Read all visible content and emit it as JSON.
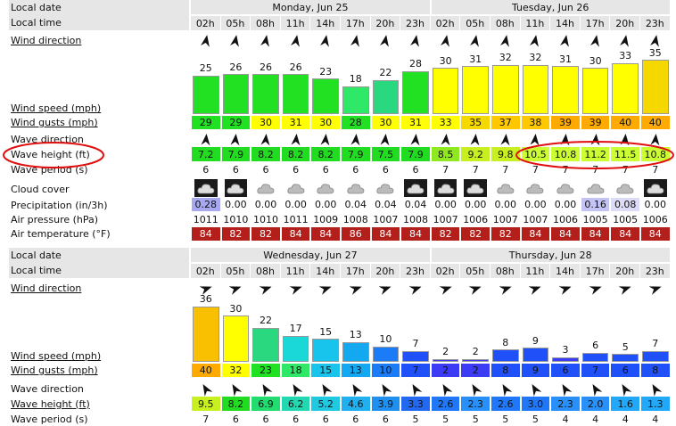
{
  "blocks": [
    {
      "local_date": "Local date",
      "days": [
        "Monday, Jun 25",
        "Tuesday, Jun 26"
      ],
      "local_time": "Local time",
      "hours": [
        "02h",
        "05h",
        "08h",
        "11h",
        "14h",
        "17h",
        "20h",
        "23h",
        "02h",
        "05h",
        "08h",
        "11h",
        "14h",
        "17h",
        "20h",
        "23h"
      ],
      "wind_direction": "Wind direction",
      "wind_speed": {
        "label": "Wind speed (mph)",
        "values": [
          25,
          26,
          26,
          26,
          23,
          18,
          22,
          28,
          30,
          31,
          32,
          32,
          31,
          30,
          33,
          35
        ]
      },
      "wind_gusts": {
        "label": "Wind gusts (mph)",
        "values": [
          29,
          29,
          30,
          31,
          30,
          28,
          30,
          31,
          33,
          35,
          37,
          38,
          39,
          39,
          40,
          40
        ]
      },
      "wave_direction": "Wave direction",
      "wave_height": {
        "label": "Wave height (ft)",
        "values": [
          "7.2",
          "7.9",
          "8.2",
          "8.2",
          "8.2",
          "7.9",
          "7.5",
          "7.9",
          "8.5",
          "9.2",
          "9.8",
          "10.5",
          "10.8",
          "11.2",
          "11.5",
          "10.8"
        ]
      },
      "wave_period": {
        "label": "Wave period (s)",
        "values": [
          6,
          6,
          6,
          6,
          6,
          6,
          6,
          6,
          7,
          7,
          7,
          7,
          7,
          7,
          7,
          7
        ]
      },
      "cloud_cover": "Cloud cover",
      "precipitation": {
        "label": "Precipitation (in/3h)",
        "values": [
          "0.28",
          "0.00",
          "0.00",
          "0.00",
          "0.00",
          "0.04",
          "0.04",
          "0.04",
          "0.00",
          "0.00",
          "0.00",
          "0.00",
          "0.00",
          "0.16",
          "0.08",
          "0.00"
        ]
      },
      "air_pressure": {
        "label": "Air pressure (hPa)",
        "values": [
          1011,
          1010,
          1010,
          1011,
          1009,
          1008,
          1007,
          1008,
          1007,
          1006,
          1007,
          1007,
          1006,
          1005,
          1005,
          1006
        ]
      },
      "air_temperature": {
        "label": "Air temperature (°F)",
        "values": [
          84,
          82,
          82,
          84,
          84,
          86,
          84,
          84,
          82,
          82,
          82,
          84,
          84,
          84,
          84,
          84
        ]
      }
    },
    {
      "local_date": "Local date",
      "days": [
        "Wednesday, Jun 27",
        "Thursday, Jun 28"
      ],
      "local_time": "Local time",
      "hours": [
        "02h",
        "05h",
        "08h",
        "11h",
        "14h",
        "17h",
        "20h",
        "23h",
        "02h",
        "05h",
        "08h",
        "11h",
        "14h",
        "17h",
        "20h",
        "23h"
      ],
      "wind_direction": "Wind direction",
      "wind_speed": {
        "label": "Wind speed (mph)",
        "values": [
          36,
          30,
          22,
          17,
          15,
          13,
          10,
          7,
          2,
          2,
          8,
          9,
          3,
          6,
          5,
          7
        ]
      },
      "wind_gusts": {
        "label": "Wind gusts (mph)",
        "values": [
          40,
          32,
          23,
          18,
          15,
          13,
          10,
          7,
          2,
          2,
          8,
          9,
          6,
          7,
          6,
          8
        ]
      },
      "wave_direction": "Wave direction",
      "wave_height": {
        "label": "Wave height (ft)",
        "values": [
          "9.5",
          "8.2",
          "6.9",
          "6.2",
          "5.2",
          "4.6",
          "3.9",
          "3.3",
          "2.6",
          "2.3",
          "2.6",
          "3.0",
          "2.3",
          "2.0",
          "1.6",
          "1.3"
        ]
      },
      "wave_period": {
        "label": "Wave period (s)",
        "values": [
          7,
          6,
          6,
          6,
          6,
          6,
          6,
          5,
          5,
          5,
          5,
          5,
          4,
          4,
          4,
          4
        ]
      }
    }
  ]
}
